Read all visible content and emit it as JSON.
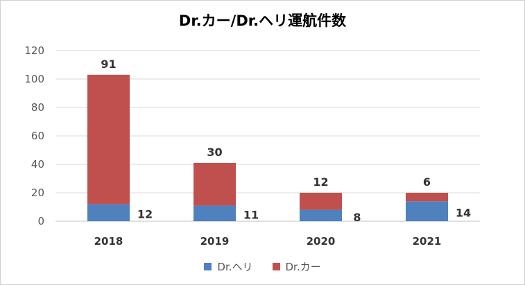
{
  "chart_data": {
    "type": "bar",
    "title": "Dr.カー/Dr.ヘリ運航件数",
    "categories": [
      "2018",
      "2019",
      "2020",
      "2021"
    ],
    "series": [
      {
        "name": "Dr.ヘリ",
        "values": [
          12,
          11,
          8,
          14
        ],
        "color": "#4e81bd"
      },
      {
        "name": "Dr.カー",
        "values": [
          91,
          30,
          12,
          6
        ],
        "color": "#c0504d"
      }
    ],
    "yticks": [
      0,
      20,
      40,
      60,
      80,
      100,
      120
    ],
    "ylim": [
      0,
      120
    ],
    "grid": true,
    "legend": "bottom"
  }
}
